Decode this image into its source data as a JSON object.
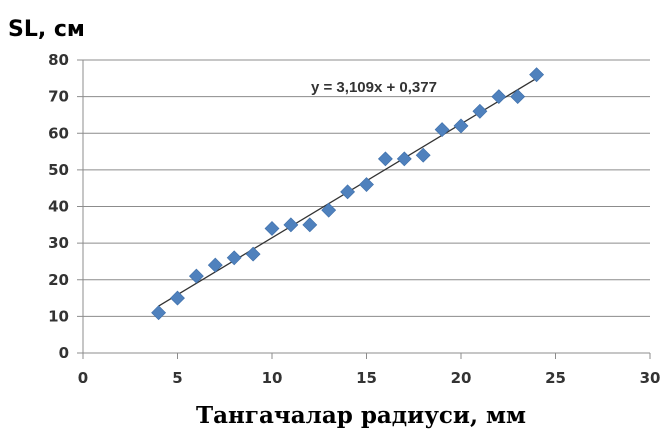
{
  "chart_data": {
    "type": "scatter",
    "ylabel": "SL, см",
    "xlabel": "Тангачалар радиуси, мм",
    "xlim": [
      0,
      30
    ],
    "ylim": [
      0,
      80
    ],
    "xticks": [
      0,
      5,
      10,
      15,
      20,
      25,
      30
    ],
    "yticks": [
      0,
      10,
      20,
      30,
      40,
      50,
      60,
      70,
      80
    ],
    "grid": "horizontal",
    "marker": "diamond",
    "series": [
      {
        "points": [
          [
            4,
            11
          ],
          [
            5,
            15
          ],
          [
            6,
            21
          ],
          [
            7,
            24
          ],
          [
            8,
            26
          ],
          [
            9,
            27
          ],
          [
            10,
            34
          ],
          [
            11,
            35
          ],
          [
            12,
            35
          ],
          [
            13,
            39
          ],
          [
            14,
            44
          ],
          [
            15,
            46
          ],
          [
            16,
            53
          ],
          [
            17,
            53
          ],
          [
            18,
            54
          ],
          [
            19,
            61
          ],
          [
            20,
            62
          ],
          [
            21,
            66
          ],
          [
            22,
            70
          ],
          [
            23,
            70
          ],
          [
            24,
            76
          ]
        ],
        "color": "#4f81bd"
      }
    ],
    "trendline": {
      "equation": "y = 3,109x + 0,377",
      "slope": 3.109,
      "intercept": 0.377,
      "x_range": [
        4,
        24
      ],
      "color": "#333333"
    }
  }
}
